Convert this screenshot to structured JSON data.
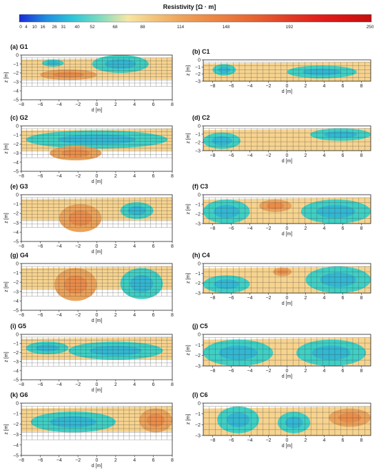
{
  "colorbar": {
    "title": "Resistivity [Ω · m]",
    "ticks": [
      "0",
      "4",
      "10",
      "16",
      "26",
      "31",
      "40",
      "52",
      "68",
      "88",
      "114",
      "148",
      "192",
      "250"
    ],
    "colors": [
      "#1a2bd6",
      "#1f8fe0",
      "#2ec7d8",
      "#7fdcbf",
      "#f7e6a3",
      "#f2c27a",
      "#eea25a",
      "#ec8a46",
      "#e9733a",
      "#e45a2f",
      "#e03a24",
      "#e0201c",
      "#d71414",
      "#c40f0f"
    ]
  },
  "chart_data": [
    {
      "type": "heatmap",
      "title": "(a) G1",
      "xlabel": "d [m]",
      "ylabel": "z [m]",
      "xlim": [
        -8,
        8
      ],
      "ylim": [
        -5,
        0
      ],
      "xticks": [
        "−8",
        "−6",
        "−4",
        "−2",
        "0",
        "2",
        "4",
        "6",
        "8"
      ],
      "yticks": [
        "0",
        "−1",
        "−2",
        "−3",
        "−4",
        "−5"
      ],
      "regions": [
        {
          "level": "low",
          "x": [
            -0.5,
            5.5
          ],
          "z": [
            0,
            -2.0
          ]
        },
        {
          "level": "low",
          "x": [
            -5.8,
            -3.5
          ],
          "z": [
            -0.5,
            -1.3
          ]
        },
        {
          "level": "high",
          "x": [
            -6,
            0
          ],
          "z": [
            -1.6,
            -2.8
          ]
        }
      ]
    },
    {
      "type": "heatmap",
      "title": "(b) C1",
      "xlabel": "d [m]",
      "ylabel": "z [m]",
      "xlim": [
        -9,
        9
      ],
      "ylim": [
        -3,
        0
      ],
      "xticks": [
        "−8",
        "−6",
        "−4",
        "−2",
        "0",
        "2",
        "4",
        "6",
        "8"
      ],
      "yticks": [
        "0",
        "−1",
        "−2",
        "−3"
      ],
      "regions": [
        {
          "level": "low",
          "x": [
            -8,
            -5.5
          ],
          "z": [
            -0.6,
            -2.2
          ]
        },
        {
          "level": "low",
          "x": [
            0,
            7.5
          ],
          "z": [
            -0.8,
            -2.6
          ]
        }
      ]
    },
    {
      "type": "heatmap",
      "title": "(c) G2",
      "xlabel": "d [m]",
      "ylabel": "z [m]",
      "xlim": [
        -8,
        8
      ],
      "ylim": [
        -5,
        0
      ],
      "xticks": [
        "−8",
        "−6",
        "−4",
        "−2",
        "0",
        "2",
        "4",
        "6",
        "8"
      ],
      "yticks": [
        "0",
        "−1",
        "−2",
        "−3",
        "−4",
        "−5"
      ],
      "regions": [
        {
          "level": "low",
          "x": [
            -7.5,
            7.5
          ],
          "z": [
            -0.5,
            -2.5
          ]
        },
        {
          "level": "high",
          "x": [
            -5,
            0.5
          ],
          "z": [
            -2.2,
            -3.8
          ]
        }
      ]
    },
    {
      "type": "heatmap",
      "title": "(d) C2",
      "xlabel": "d [m]",
      "ylabel": "z [m]",
      "xlim": [
        -9,
        9
      ],
      "ylim": [
        -3,
        0
      ],
      "xticks": [
        "−8",
        "−6",
        "−4",
        "−2",
        "0",
        "2",
        "4",
        "6",
        "8"
      ],
      "yticks": [
        "0",
        "−1",
        "−2",
        "−3"
      ],
      "regions": [
        {
          "level": "low",
          "x": [
            -9,
            -5
          ],
          "z": [
            -0.8,
            -2.8
          ]
        },
        {
          "level": "low",
          "x": [
            2.5,
            9
          ],
          "z": [
            -0.3,
            -1.8
          ]
        }
      ]
    },
    {
      "type": "heatmap",
      "title": "(e) G3",
      "xlabel": "d [m]",
      "ylabel": "z [m]",
      "xlim": [
        -8,
        8
      ],
      "ylim": [
        -5,
        0
      ],
      "xticks": [
        "−8",
        "−6",
        "−4",
        "−2",
        "0",
        "2",
        "4",
        "6",
        "8"
      ],
      "yticks": [
        "0",
        "−1",
        "−2",
        "−3",
        "−4",
        "−5"
      ],
      "regions": [
        {
          "level": "low",
          "x": [
            2.5,
            6
          ],
          "z": [
            -0.8,
            -2.6
          ]
        },
        {
          "level": "high",
          "x": [
            -4,
            0.5
          ],
          "z": [
            -1.0,
            -4.0
          ]
        }
      ]
    },
    {
      "type": "heatmap",
      "title": "(f) C3",
      "xlabel": "d [m]",
      "ylabel": "z [m]",
      "xlim": [
        -9,
        9
      ],
      "ylim": [
        -3,
        0
      ],
      "xticks": [
        "−8",
        "−6",
        "−4",
        "−2",
        "0",
        "2",
        "4",
        "6",
        "8"
      ],
      "yticks": [
        "0",
        "−1",
        "−2",
        "−3"
      ],
      "regions": [
        {
          "level": "low",
          "x": [
            -9,
            -4
          ],
          "z": [
            -0.5,
            -3
          ]
        },
        {
          "level": "low",
          "x": [
            1.5,
            9
          ],
          "z": [
            -0.5,
            -3
          ]
        },
        {
          "level": "high",
          "x": [
            -3,
            0.5
          ],
          "z": [
            -0.5,
            -1.8
          ]
        }
      ]
    },
    {
      "type": "heatmap",
      "title": "(g) G4",
      "xlabel": "d [m]",
      "ylabel": "z [m]",
      "xlim": [
        -8,
        8
      ],
      "ylim": [
        -5,
        0
      ],
      "xticks": [
        "−8",
        "−6",
        "−4",
        "−2",
        "0",
        "2",
        "4",
        "6",
        "8"
      ],
      "yticks": [
        "0",
        "−1",
        "−2",
        "−3",
        "−4",
        "−5"
      ],
      "regions": [
        {
          "level": "low",
          "x": [
            2.5,
            7
          ],
          "z": [
            -0.5,
            -3.8
          ]
        },
        {
          "level": "high",
          "x": [
            -4.5,
            0
          ],
          "z": [
            -0.5,
            -4.0
          ]
        }
      ]
    },
    {
      "type": "heatmap",
      "title": "(h) C4",
      "xlabel": "d [m]",
      "ylabel": "z [m]",
      "xlim": [
        -9,
        9
      ],
      "ylim": [
        -3,
        0
      ],
      "xticks": [
        "−8",
        "−6",
        "−4",
        "−2",
        "0",
        "2",
        "4",
        "6",
        "8"
      ],
      "yticks": [
        "0",
        "−1",
        "−2",
        "−3"
      ],
      "regions": [
        {
          "level": "low",
          "x": [
            -9,
            -4
          ],
          "z": [
            -1.2,
            -3
          ]
        },
        {
          "level": "low",
          "x": [
            2,
            9
          ],
          "z": [
            -0.3,
            -3
          ]
        },
        {
          "level": "high",
          "x": [
            -1.5,
            0.5
          ],
          "z": [
            -0.4,
            -1.3
          ]
        }
      ]
    },
    {
      "type": "heatmap",
      "title": "(i) G5",
      "xlabel": "d [m]",
      "ylabel": "z [m]",
      "xlim": [
        -8,
        8
      ],
      "ylim": [
        -5,
        0
      ],
      "xticks": [
        "−8",
        "−6",
        "−4",
        "−2",
        "0",
        "2",
        "4",
        "6",
        "8"
      ],
      "yticks": [
        "0",
        "−1",
        "−2",
        "−3",
        "−4",
        "−5"
      ],
      "regions": [
        {
          "level": "low",
          "x": [
            -7.5,
            -3
          ],
          "z": [
            -0.8,
            -2.2
          ]
        },
        {
          "level": "low",
          "x": [
            -3,
            7
          ],
          "z": [
            -0.8,
            -2.8
          ]
        }
      ]
    },
    {
      "type": "heatmap",
      "title": "(j) C5",
      "xlabel": "d [m]",
      "ylabel": "z [m]",
      "xlim": [
        -9,
        9
      ],
      "ylim": [
        -3,
        0
      ],
      "xticks": [
        "−8",
        "−6",
        "−4",
        "−2",
        "0",
        "2",
        "4",
        "6",
        "8"
      ],
      "yticks": [
        "0",
        "−1",
        "−2",
        "−3"
      ],
      "regions": [
        {
          "level": "low",
          "x": [
            -9,
            -1.5
          ],
          "z": [
            -0.5,
            -3
          ]
        },
        {
          "level": "low",
          "x": [
            1,
            8.5
          ],
          "z": [
            -0.5,
            -3
          ]
        }
      ]
    },
    {
      "type": "heatmap",
      "title": "(k) G6",
      "xlabel": "d [m]",
      "ylabel": "z [m]",
      "xlim": [
        -8,
        8
      ],
      "ylim": [
        -5,
        0
      ],
      "xticks": [
        "−8",
        "−6",
        "−4",
        "−2",
        "0",
        "2",
        "4",
        "6",
        "8"
      ],
      "yticks": [
        "0",
        "−1",
        "−2",
        "−3",
        "−4",
        "−5"
      ],
      "regions": [
        {
          "level": "low",
          "x": [
            -7,
            2
          ],
          "z": [
            -0.8,
            -2.8
          ]
        },
        {
          "level": "high",
          "x": [
            4.5,
            8
          ],
          "z": [
            -0.5,
            -2.8
          ]
        }
      ]
    },
    {
      "type": "heatmap",
      "title": "(l) C6",
      "xlabel": "d [m]",
      "ylabel": "z [m]",
      "xlim": [
        -9,
        9
      ],
      "ylim": [
        -3,
        0
      ],
      "xticks": [
        "−8",
        "−6",
        "−4",
        "−2",
        "0",
        "2",
        "4",
        "6",
        "8"
      ],
      "yticks": [
        "0",
        "−1",
        "−2",
        "−3"
      ],
      "regions": [
        {
          "level": "low",
          "x": [
            -7.5,
            -3
          ],
          "z": [
            -0.3,
            -2.8
          ]
        },
        {
          "level": "low",
          "x": [
            -1,
            2.5
          ],
          "z": [
            -0.8,
            -2.8
          ]
        },
        {
          "level": "high",
          "x": [
            4.5,
            9
          ],
          "z": [
            -0.5,
            -2.2
          ]
        }
      ]
    }
  ]
}
